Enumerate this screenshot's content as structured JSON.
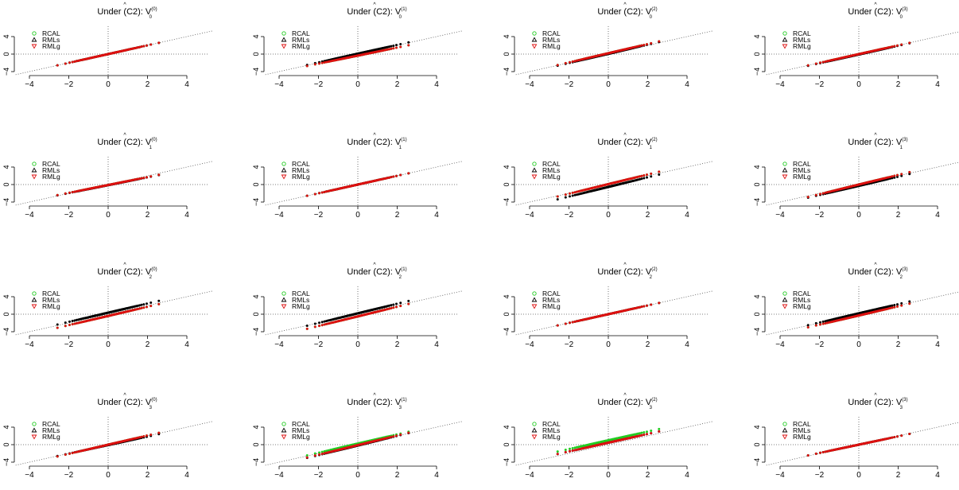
{
  "figure": {
    "title_prefix": "Under (C2): ",
    "estimator_symbol": "V",
    "legend": [
      {
        "label": "RCAL",
        "marker": "circle",
        "color": "#22cc22"
      },
      {
        "label": "RMLs",
        "marker": "triangle-up",
        "color": "#000000"
      },
      {
        "label": "RMLg",
        "marker": "triangle-down",
        "color": "#dd1111"
      }
    ],
    "x_ticks": [
      -4,
      -2,
      0,
      2,
      4
    ],
    "y_ticks": [
      -4,
      0,
      4
    ],
    "reference_lines": [
      "y = x (dotted)",
      "x = 0 (dotted)",
      "y = 0 (dotted)"
    ]
  },
  "chart_data": [
    {
      "row": 0,
      "col": 0,
      "type": "scatter",
      "title_sub": "0",
      "title_sup": "(0)",
      "slopes": {
        "RCAL": 1.0,
        "RMLs": 1.0,
        "RMLg": 1.0
      },
      "offsets": {
        "RCAL": 0.0,
        "RMLs": 0.0,
        "RMLg": 0.0
      },
      "xlim": [
        -4.5,
        4.5
      ],
      "ylim": [
        -4.5,
        4.5
      ]
    },
    {
      "row": 0,
      "col": 1,
      "type": "scatter",
      "title_sub": "0",
      "title_sup": "(1)",
      "slopes": {
        "RCAL": 0.92,
        "RMLs": 1.0,
        "RMLg": 0.92
      },
      "offsets": {
        "RCAL": -0.35,
        "RMLs": 0.1,
        "RMLg": -0.35
      },
      "xlim": [
        -4.5,
        4.5
      ],
      "ylim": [
        -4.5,
        4.5
      ]
    },
    {
      "row": 0,
      "col": 2,
      "type": "scatter",
      "title_sub": "0",
      "title_sup": "(2)",
      "slopes": {
        "RCAL": 1.05,
        "RMLs": 1.05,
        "RMLg": 1.05
      },
      "offsets": {
        "RCAL": 0.2,
        "RMLs": 0.05,
        "RMLg": 0.2
      },
      "xlim": [
        -4.5,
        4.5
      ],
      "ylim": [
        -4.5,
        4.5
      ]
    },
    {
      "row": 0,
      "col": 3,
      "type": "scatter",
      "title_sub": "0",
      "title_sup": "(3)",
      "slopes": {
        "RCAL": 1.0,
        "RMLs": 1.0,
        "RMLg": 1.0
      },
      "offsets": {
        "RCAL": 0.0,
        "RMLs": -0.1,
        "RMLg": 0.0
      },
      "xlim": [
        -4.5,
        4.5
      ],
      "ylim": [
        -4.5,
        4.5
      ]
    },
    {
      "row": 1,
      "col": 0,
      "type": "scatter",
      "title_sub": "1",
      "title_sup": "(0)",
      "slopes": {
        "RCAL": 0.9,
        "RMLs": 0.9,
        "RMLg": 0.9
      },
      "offsets": {
        "RCAL": -0.1,
        "RMLs": -0.15,
        "RMLg": -0.1
      },
      "xlim": [
        -4.5,
        4.5
      ],
      "ylim": [
        -4.5,
        4.5
      ]
    },
    {
      "row": 1,
      "col": 1,
      "type": "scatter",
      "title_sub": "1",
      "title_sup": "(1)",
      "slopes": {
        "RCAL": 1.0,
        "RMLs": 1.0,
        "RMLg": 1.0
      },
      "offsets": {
        "RCAL": 0.0,
        "RMLs": 0.0,
        "RMLg": 0.0
      },
      "xlim": [
        -4.5,
        4.5
      ],
      "ylim": [
        -4.5,
        4.5
      ]
    },
    {
      "row": 1,
      "col": 2,
      "type": "scatter",
      "title_sub": "1",
      "title_sup": "(2)",
      "slopes": {
        "RCAL": 1.1,
        "RMLs": 1.1,
        "RMLg": 1.1
      },
      "offsets": {
        "RCAL": 0.1,
        "RMLs": -0.55,
        "RMLg": 0.1
      },
      "xlim": [
        -4.5,
        4.5
      ],
      "ylim": [
        -4.5,
        4.5
      ]
    },
    {
      "row": 1,
      "col": 3,
      "type": "scatter",
      "title_sub": "1",
      "title_sup": "(3)",
      "slopes": {
        "RCAL": 1.1,
        "RMLs": 1.05,
        "RMLg": 1.1
      },
      "offsets": {
        "RCAL": 0.0,
        "RMLs": -0.3,
        "RMLg": 0.0
      },
      "xlim": [
        -4.5,
        4.5
      ],
      "ylim": [
        -4.5,
        4.5
      ]
    },
    {
      "row": 2,
      "col": 0,
      "type": "scatter",
      "title_sub": "2",
      "title_sup": "(0)",
      "slopes": {
        "RCAL": 1.05,
        "RMLs": 1.05,
        "RMLg": 1.05
      },
      "offsets": {
        "RCAL": -0.4,
        "RMLs": 0.35,
        "RMLg": -0.4
      },
      "xlim": [
        -4.5,
        4.5
      ],
      "ylim": [
        -4.5,
        4.5
      ]
    },
    {
      "row": 2,
      "col": 1,
      "type": "scatter",
      "title_sub": "2",
      "title_sup": "(1)",
      "slopes": {
        "RCAL": 1.1,
        "RMLs": 1.1,
        "RMLg": 1.1
      },
      "offsets": {
        "RCAL": -0.5,
        "RMLs": 0.2,
        "RMLg": -0.5
      },
      "xlim": [
        -4.5,
        4.5
      ],
      "ylim": [
        -4.5,
        4.5
      ]
    },
    {
      "row": 2,
      "col": 2,
      "type": "scatter",
      "title_sub": "2",
      "title_sup": "(2)",
      "slopes": {
        "RCAL": 1.0,
        "RMLs": 1.0,
        "RMLg": 1.0
      },
      "offsets": {
        "RCAL": 0.0,
        "RMLs": 0.0,
        "RMLg": 0.0
      },
      "xlim": [
        -4.5,
        4.5
      ],
      "ylim": [
        -4.5,
        4.5
      ]
    },
    {
      "row": 2,
      "col": 3,
      "type": "scatter",
      "title_sub": "2",
      "title_sup": "(3)",
      "slopes": {
        "RCAL": 1.05,
        "RMLs": 1.05,
        "RMLg": 1.05
      },
      "offsets": {
        "RCAL": -0.3,
        "RMLs": 0.2,
        "RMLg": -0.3
      },
      "xlim": [
        -4.5,
        4.5
      ],
      "ylim": [
        -4.5,
        4.5
      ]
    },
    {
      "row": 3,
      "col": 0,
      "type": "scatter",
      "title_sub": "3",
      "title_sup": "(0)",
      "slopes": {
        "RCAL": 1.05,
        "RMLs": 0.97,
        "RMLg": 1.05
      },
      "offsets": {
        "RCAL": 0.0,
        "RMLs": -0.1,
        "RMLg": 0.0
      },
      "xlim": [
        -4.5,
        4.5
      ],
      "ylim": [
        -4.5,
        4.5
      ]
    },
    {
      "row": 3,
      "col": 1,
      "type": "scatter",
      "title_sub": "3",
      "title_sup": "(1)",
      "slopes": {
        "RCAL": 1.05,
        "RMLs": 1.1,
        "RMLg": 1.1
      },
      "offsets": {
        "RCAL": 0.25,
        "RMLs": -0.2,
        "RMLg": -0.1
      },
      "xlim": [
        -4.5,
        4.5
      ],
      "ylim": [
        -4.5,
        4.5
      ]
    },
    {
      "row": 3,
      "col": 2,
      "type": "scatter",
      "title_sub": "3",
      "title_sup": "(2)",
      "slopes": {
        "RCAL": 1.0,
        "RMLs": 1.0,
        "RMLg": 1.0
      },
      "offsets": {
        "RCAL": 1.0,
        "RMLs": 0.45,
        "RMLg": 0.45
      },
      "xlim": [
        -4.5,
        4.5
      ],
      "ylim": [
        -4.5,
        4.5
      ]
    },
    {
      "row": 3,
      "col": 3,
      "type": "scatter",
      "title_sub": "3",
      "title_sup": "(3)",
      "slopes": {
        "RCAL": 0.95,
        "RMLs": 0.95,
        "RMLg": 0.95
      },
      "offsets": {
        "RCAL": 0.0,
        "RMLs": 0.0,
        "RMLg": 0.0
      },
      "xlim": [
        -4.5,
        4.5
      ],
      "ylim": [
        -4.5,
        4.5
      ]
    }
  ]
}
